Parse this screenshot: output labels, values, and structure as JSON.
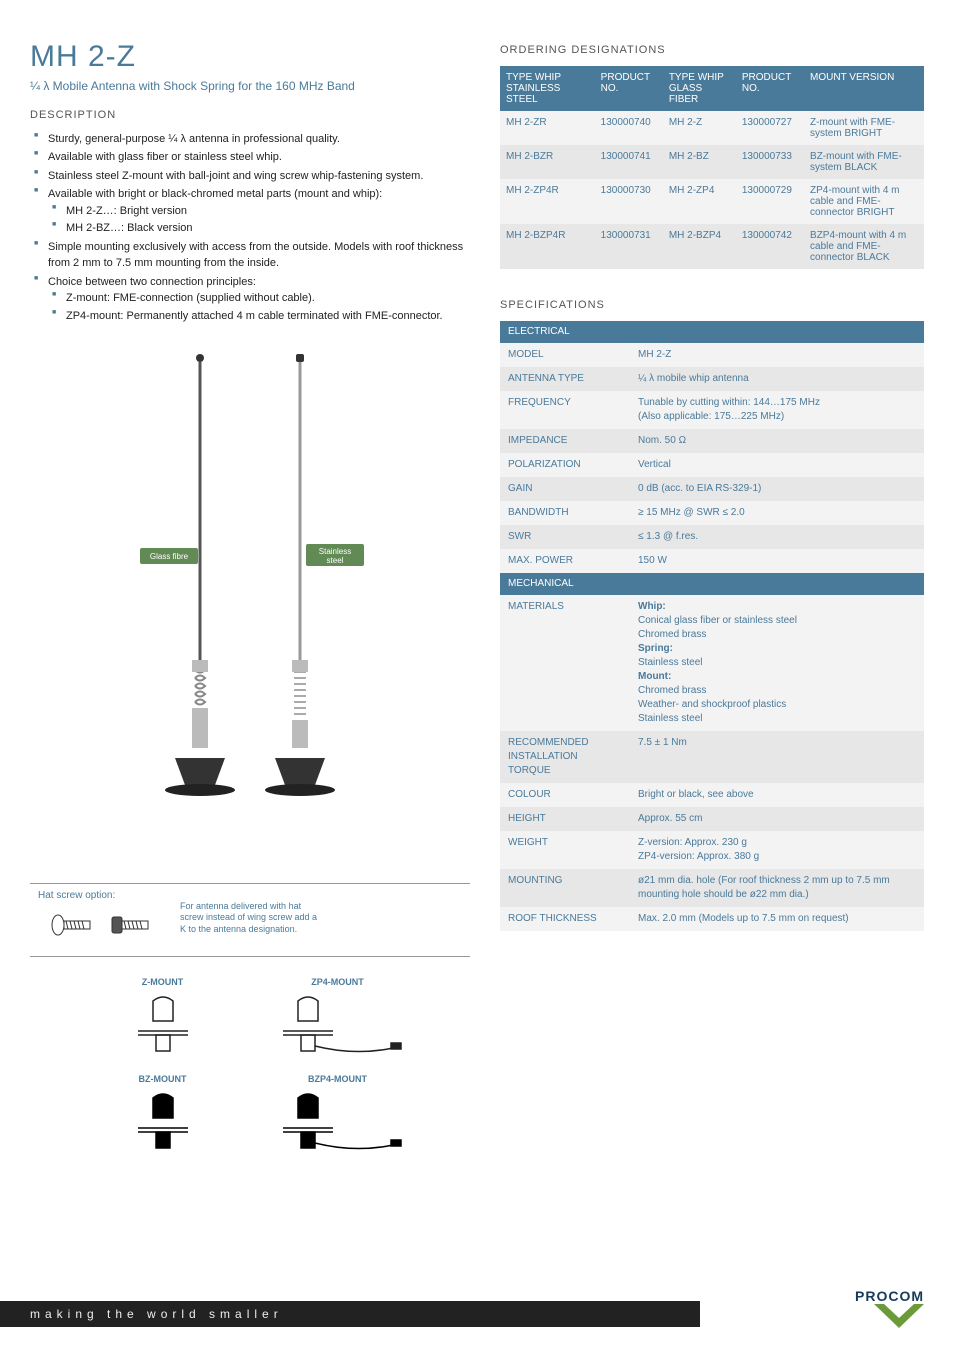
{
  "header": {
    "title": "MH 2-Z",
    "subtitle": "¼ λ Mobile Antenna with Shock Spring for the 160 MHz Band"
  },
  "description": {
    "heading": "DESCRIPTION",
    "bullets": [
      {
        "text": "Sturdy, general-purpose ¼ λ antenna in professional quality."
      },
      {
        "text": "Available with glass fiber or stainless steel whip."
      },
      {
        "text": "Stainless steel Z-mount with ball-joint and wing screw whip-fastening system."
      },
      {
        "text": "Available with bright or black-chromed metal parts (mount and whip):",
        "sub": [
          "MH 2-Z…: Bright version",
          "MH 2-BZ…: Black version"
        ]
      },
      {
        "text": "Simple mounting exclusively with access from the outside. Models with roof thickness from 2 mm to 7.5 mm mounting from the inside."
      },
      {
        "text": "Choice between two connection principles:",
        "sub": [
          "Z-mount: FME-connection (supplied without cable).",
          "ZP4-mount: Permanently attached 4 m cable terminated with FME-connector."
        ]
      }
    ]
  },
  "figure": {
    "glass_fibre_label": "Glass fibre",
    "stainless_steel_label": "Stainless steel",
    "hat_screw_title": "Hat screw option:",
    "hat_screw_note": "For antenna delivered with hat screw instead of wing screw add a K to the antenna designation.",
    "mounts": [
      {
        "title": "Z-MOUNT"
      },
      {
        "title": "ZP4-MOUNT"
      },
      {
        "title": "BZ-MOUNT"
      },
      {
        "title": "BZP4-MOUNT"
      }
    ]
  },
  "ordering": {
    "heading": "ORDERING DESIGNATIONS",
    "headers": [
      "TYPE WHIP STAINLESS STEEL",
      "PRODUCT NO.",
      "TYPE WHIP GLASS FIBER",
      "PRODUCT NO.",
      "MOUNT VERSION"
    ],
    "rows": [
      [
        "MH 2-ZR",
        "130000740",
        "MH 2-Z",
        "130000727",
        "Z-mount with FME-system BRIGHT"
      ],
      [
        "MH 2-BZR",
        "130000741",
        "MH 2-BZ",
        "130000733",
        "BZ-mount with FME-system BLACK"
      ],
      [
        "MH 2-ZP4R",
        "130000730",
        "MH 2-ZP4",
        "130000729",
        "ZP4-mount with 4 m cable and FME-connector BRIGHT"
      ],
      [
        "MH 2-BZP4R",
        "130000731",
        "MH 2-BZP4",
        "130000742",
        "BZP4-mount with 4 m cable and FME-connector BLACK"
      ]
    ]
  },
  "specs": {
    "heading": "SPECIFICATIONS",
    "sections": [
      {
        "title": "ELECTRICAL",
        "rows": [
          [
            "MODEL",
            "MH 2-Z"
          ],
          [
            "ANTENNA TYPE",
            "¼ λ mobile whip antenna"
          ],
          [
            "FREQUENCY",
            "Tunable by cutting within: 144…175 MHz\n(Also applicable: 175…225 MHz)"
          ],
          [
            "IMPEDANCE",
            "Nom. 50 Ω"
          ],
          [
            "POLARIZATION",
            "Vertical"
          ],
          [
            "GAIN",
            "0 dB (acc. to EIA RS-329-1)"
          ],
          [
            "BANDWIDTH",
            "≥ 15 MHz @ SWR ≤ 2.0"
          ],
          [
            "SWR",
            "≤ 1.3 @ f.res."
          ],
          [
            "MAX. POWER",
            "150 W"
          ]
        ]
      },
      {
        "title": "MECHANICAL",
        "rows": [
          [
            "MATERIALS",
            "Whip:\nConical glass fiber or stainless steel\nChromed brass\nSpring:\nStainless steel\nMount:\nChromed brass\nWeather- and shockproof plastics\nStainless steel"
          ],
          [
            "RECOMMENDED INSTALLATION TORQUE",
            "7.5 ± 1 Nm"
          ],
          [
            "COLOUR",
            "Bright or black, see above"
          ],
          [
            "HEIGHT",
            "Approx. 55 cm"
          ],
          [
            "WEIGHT",
            "Z-version: Approx. 230 g\nZP4-version: Approx. 380 g"
          ],
          [
            "MOUNTING",
            "ø21 mm dia. hole (For roof thickness 2 mm up to 7.5 mm mounting hole should be ø22 mm dia.)"
          ],
          [
            "ROOF THICKNESS",
            "Max. 2.0 mm (Models up to 7.5 mm on request)"
          ]
        ]
      }
    ]
  },
  "footer": {
    "tagline": "making the world smaller",
    "brand": "PROCOM"
  },
  "colors": {
    "accent": "#4a7a9a",
    "callout": "#628a55",
    "odd_row": "#f3f3f3",
    "even_row": "#e7e7e7",
    "footer_bg": "#222222",
    "brand_color": "#163a5a"
  }
}
